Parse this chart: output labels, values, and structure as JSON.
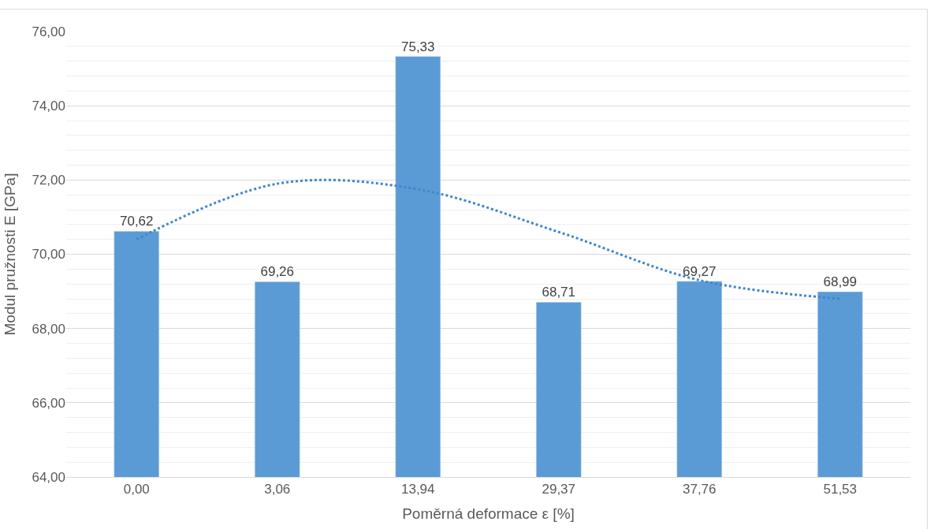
{
  "chart_data": {
    "type": "bar",
    "xlabel": "Poměrná deformace ε [%]",
    "ylabel": "Modul pružnosti E [GPa]",
    "categories": [
      "0,00",
      "3,06",
      "13,94",
      "29,37",
      "37,76",
      "51,53"
    ],
    "series": [
      {
        "color": "#5b9bd5",
        "values": [
          70.62,
          69.26,
          75.33,
          68.71,
          69.27,
          68.99
        ],
        "value_labels": [
          "70,62",
          "69,26",
          "75,33",
          "68,71",
          "69,27",
          "68,99"
        ]
      },
      {
        "type": "line",
        "color": "#3f86cc",
        "line_style": "dotted",
        "marker": "none",
        "values": [
          70.4,
          71.9,
          71.75,
          70.6,
          69.3,
          68.8
        ]
      }
    ],
    "ylim": [
      64,
      76
    ],
    "yticks": [
      {
        "value": 64,
        "label": "64,00"
      },
      {
        "value": 66,
        "label": "66,00"
      },
      {
        "value": 68,
        "label": "68,00"
      },
      {
        "value": 70,
        "label": "70,00"
      },
      {
        "value": 72,
        "label": "72,00"
      },
      {
        "value": 74,
        "label": "74,00"
      },
      {
        "value": 76,
        "label": "76,00"
      }
    ],
    "grid": "y",
    "legend": false
  }
}
